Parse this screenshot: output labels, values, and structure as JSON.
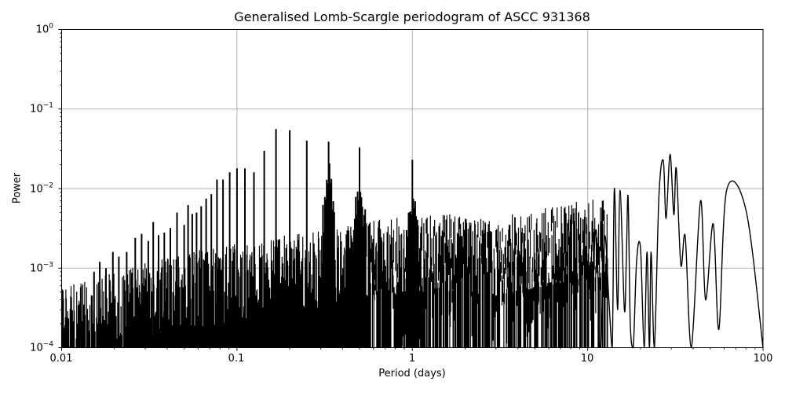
{
  "figure": {
    "title": "Generalised Lomb-Scargle periodogram of ASCC 931368",
    "xlabel": "Period (days)",
    "ylabel": "Power",
    "xticks": [
      "0.01",
      "0.1",
      "1",
      "10",
      "100"
    ],
    "yticks": [
      {
        "base": "10",
        "exp": "0"
      },
      {
        "base": "10",
        "exp": "−1"
      },
      {
        "base": "10",
        "exp": "−2"
      },
      {
        "base": "10",
        "exp": "−3"
      },
      {
        "base": "10",
        "exp": "−4"
      }
    ]
  },
  "chart_data": {
    "type": "line",
    "title": "Generalised Lomb-Scargle periodogram of ASCC 931368",
    "xlabel": "Period (days)",
    "ylabel": "Power",
    "xscale": "log",
    "yscale": "log",
    "xlim": [
      0.01,
      100
    ],
    "ylim": [
      0.0001,
      1
    ],
    "grid": true,
    "line_color": "#000000",
    "grid_color": "#b0b0b0",
    "x_major_ticks": [
      0.01,
      0.1,
      1,
      10,
      100
    ],
    "y_major_ticks": [
      1,
      0.1,
      0.01,
      0.001,
      0.0001
    ],
    "alias_peaks": {
      "description": "Sharp aliasing peaks in the 0.01-1 day range",
      "x": [
        0.0153,
        0.0165,
        0.0179,
        0.0196,
        0.0212,
        0.0235,
        0.0263,
        0.0286,
        0.0312,
        0.0333,
        0.0357,
        0.0385,
        0.0417,
        0.0455,
        0.05,
        0.0526,
        0.0556,
        0.0588,
        0.0625,
        0.0667,
        0.0714,
        0.0769,
        0.0833,
        0.0909,
        0.1,
        0.111,
        0.125,
        0.143,
        0.167,
        0.2,
        0.25,
        0.333,
        0.5,
        1.0
      ],
      "y": [
        0.0009,
        0.0012,
        0.001,
        0.0016,
        0.0014,
        0.0016,
        0.0024,
        0.0027,
        0.0022,
        0.0038,
        0.0026,
        0.0028,
        0.0032,
        0.005,
        0.0035,
        0.0062,
        0.0048,
        0.005,
        0.006,
        0.0075,
        0.0085,
        0.013,
        0.013,
        0.016,
        0.018,
        0.018,
        0.016,
        0.03,
        0.056,
        0.054,
        0.04,
        0.039,
        0.033,
        0.023
      ]
    },
    "long_period_peaks": {
      "description": "Resolved peaks at long periods (smooth curve)",
      "x": [
        14.2,
        15.3,
        17.0,
        20.0,
        23.0,
        27.0,
        29.5,
        32.0,
        36.0,
        44.0,
        52.0,
        62.0,
        80.0
      ],
      "y": [
        0.01,
        0.0095,
        0.008,
        0.0018,
        0.0016,
        0.0225,
        0.027,
        0.018,
        0.0025,
        0.007,
        0.0036,
        0.0095,
        0.0053
      ]
    },
    "long_period_troughs": {
      "x": [
        28.0,
        31.0,
        34.0,
        39.0,
        47.0,
        56.0,
        100.0
      ],
      "y": [
        0.0042,
        0.0047,
        0.0011,
        0.0001,
        0.0004,
        0.00017,
        0.0001
      ]
    },
    "noise_floor": {
      "description": "Approximate upper envelope of dense noise by period range",
      "x": [
        0.01,
        0.015,
        0.03,
        0.1,
        0.3,
        0.7,
        1.5,
        3,
        6,
        10
      ],
      "y": [
        0.0004,
        0.0005,
        0.0008,
        0.0015,
        0.002,
        0.003,
        0.0035,
        0.003,
        0.004,
        0.005
      ]
    }
  }
}
